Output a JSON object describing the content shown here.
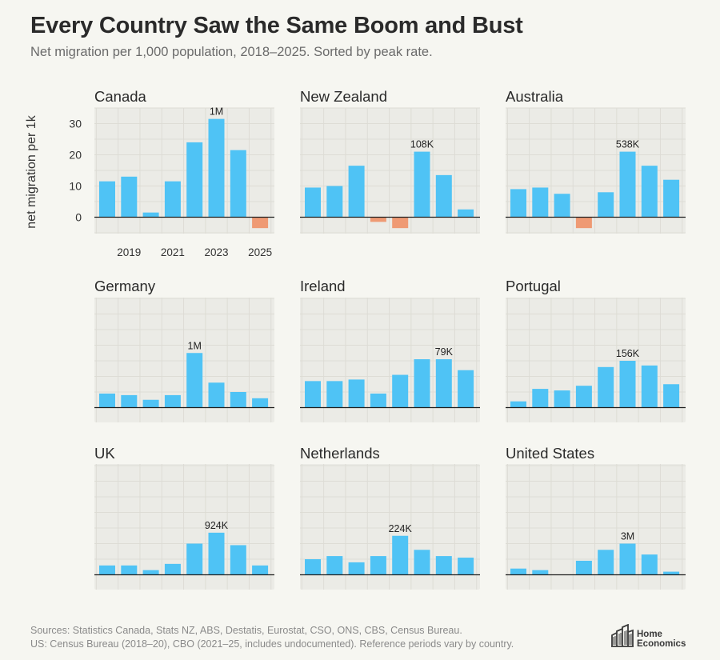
{
  "title": "Every Country Saw the Same Boom and Bust",
  "subtitle": "Net migration per 1,000 population, 2018–2025. Sorted by peak rate.",
  "colors": {
    "positive": "#4fc3f5",
    "negative": "#ef9a74",
    "panel_bg": "#ececE7",
    "grid": "#dcdcd5",
    "baseline": "#1f1f1f"
  },
  "footnotes": {
    "line1": "Sources: Statistics Canada, Stats NZ, ABS, Destatis, Eurostat, CSO, ONS, CBS, Census Bureau.",
    "line2": "US: Census Bureau (2018–20), CBO (2021–25, includes undocumented). Reference periods vary by country."
  },
  "logo": {
    "icon": "building-bars-icon",
    "line1": "Home",
    "line2": "Economics"
  },
  "chart_data": {
    "type": "bar",
    "layout": "small-multiples 3x3",
    "x": [
      2018,
      2019,
      2020,
      2021,
      2022,
      2023,
      2024,
      2025
    ],
    "xticks": [
      "2019",
      "2021",
      "2023",
      "2025"
    ],
    "ylabel": "net migration per 1k",
    "yticks": [
      "0",
      "10",
      "20",
      "30"
    ],
    "ylim": [
      -5,
      35
    ],
    "panels": [
      {
        "name": "Canada",
        "values": [
          11.5,
          13,
          1.5,
          11.5,
          24,
          31.5,
          21.5,
          -3.5
        ],
        "peak_label": "1M",
        "peak_index": 5
      },
      {
        "name": "New Zealand",
        "values": [
          9.5,
          10,
          16.5,
          -1.5,
          -3.5,
          21,
          13.5,
          2.5
        ],
        "peak_label": "108K",
        "peak_index": 5
      },
      {
        "name": "Australia",
        "values": [
          9,
          9.5,
          7.5,
          -3.5,
          8,
          21,
          16.5,
          12
        ],
        "peak_label": "538K",
        "peak_index": 5
      },
      {
        "name": "Germany",
        "values": [
          4.5,
          4,
          2.5,
          4,
          17.5,
          8,
          5,
          3
        ],
        "peak_label": "1M",
        "peak_index": 4
      },
      {
        "name": "Ireland",
        "values": [
          8.5,
          8.5,
          9,
          4.5,
          10.5,
          15.5,
          15.5,
          12
        ],
        "peak_label": "79K",
        "peak_index": 6
      },
      {
        "name": "Portugal",
        "values": [
          2,
          6,
          5.5,
          7,
          13,
          15,
          13.5,
          7.5
        ],
        "peak_label": "156K",
        "peak_index": 5
      },
      {
        "name": "UK",
        "values": [
          3,
          3,
          1.5,
          3.5,
          10,
          13.5,
          9.5,
          3
        ],
        "peak_label": "924K",
        "peak_index": 5
      },
      {
        "name": "Netherlands",
        "values": [
          5,
          6,
          4,
          6,
          12.5,
          8,
          6,
          5.5
        ],
        "peak_label": "224K",
        "peak_index": 4
      },
      {
        "name": "United States",
        "values": [
          2,
          1.5,
          0,
          4.5,
          8,
          10,
          6.5,
          1
        ],
        "peak_label": "3M",
        "peak_index": 5
      }
    ]
  }
}
